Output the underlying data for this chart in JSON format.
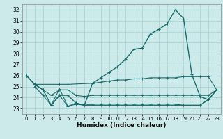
{
  "xlabel": "Humidex (Indice chaleur)",
  "bg_color": "#cceaea",
  "line_color": "#1a6b6b",
  "grid_color": "#aad4d4",
  "xlim": [
    -0.5,
    23.5
  ],
  "ylim": [
    22.5,
    32.5
  ],
  "yticks": [
    23,
    24,
    25,
    26,
    27,
    28,
    29,
    30,
    31,
    32
  ],
  "xticks": [
    0,
    1,
    2,
    3,
    4,
    5,
    6,
    7,
    8,
    9,
    10,
    11,
    12,
    13,
    14,
    15,
    16,
    17,
    18,
    19,
    20,
    21,
    22,
    23
  ],
  "series": [
    {
      "x": [
        0,
        1,
        2,
        3,
        4,
        5,
        6,
        7,
        8,
        9,
        10,
        11,
        12,
        13,
        14,
        15,
        16,
        17,
        18,
        19,
        20,
        21,
        22,
        23
      ],
      "y": [
        26.0,
        25.2,
        24.7,
        23.3,
        24.2,
        24.2,
        23.5,
        23.3,
        25.3,
        25.8,
        26.3,
        26.8,
        27.5,
        28.4,
        28.5,
        29.8,
        30.2,
        30.7,
        32.0,
        31.2,
        26.1,
        24.1,
        23.8,
        24.7
      ],
      "has_markers": true,
      "lw": 1.0
    },
    {
      "x": [
        0,
        1,
        4,
        5,
        8,
        9,
        10,
        11,
        12,
        13,
        14,
        15,
        16,
        17,
        18,
        19,
        20,
        21,
        22,
        23
      ],
      "y": [
        26.0,
        25.2,
        25.2,
        25.2,
        25.3,
        25.4,
        25.5,
        25.6,
        25.6,
        25.7,
        25.7,
        25.8,
        25.8,
        25.8,
        25.8,
        25.9,
        25.9,
        25.9,
        25.9,
        24.7
      ],
      "has_markers": false,
      "lw": 0.8
    },
    {
      "x": [
        1,
        2,
        3,
        4,
        5,
        6,
        7,
        8,
        9,
        10,
        11,
        12,
        13,
        14,
        15,
        16,
        17,
        18,
        19,
        20,
        21,
        22,
        23
      ],
      "y": [
        25.2,
        24.7,
        24.2,
        24.7,
        24.7,
        24.2,
        24.1,
        24.2,
        24.2,
        24.2,
        24.2,
        24.2,
        24.2,
        24.2,
        24.2,
        24.2,
        24.2,
        24.2,
        24.2,
        24.2,
        24.2,
        24.2,
        24.7
      ],
      "has_markers": false,
      "lw": 0.8
    },
    {
      "x": [
        1,
        2,
        3,
        4,
        5,
        6,
        7,
        8,
        9,
        10,
        11,
        12,
        13,
        14,
        15,
        16,
        17,
        18,
        19,
        20,
        21,
        22,
        23
      ],
      "y": [
        25.0,
        24.2,
        23.3,
        24.2,
        23.2,
        23.5,
        23.3,
        23.4,
        23.4,
        23.4,
        23.4,
        23.4,
        23.4,
        23.4,
        23.4,
        23.4,
        23.4,
        23.4,
        23.3,
        23.3,
        23.3,
        23.8,
        24.7
      ],
      "has_markers": false,
      "lw": 0.8
    },
    {
      "x": [
        3,
        4,
        5,
        6,
        7,
        8,
        9,
        10,
        11,
        12,
        13,
        14,
        15,
        16,
        17,
        18,
        19,
        20,
        21,
        22,
        23
      ],
      "y": [
        23.3,
        24.8,
        23.2,
        23.4,
        23.3,
        23.3,
        23.3,
        23.3,
        23.3,
        23.3,
        23.3,
        23.3,
        23.3,
        23.3,
        23.3,
        23.3,
        23.3,
        23.3,
        23.3,
        23.8,
        24.7
      ],
      "has_markers": false,
      "lw": 0.8
    }
  ]
}
